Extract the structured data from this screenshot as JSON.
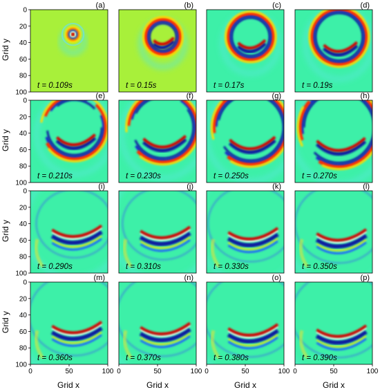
{
  "chart_data": {
    "type": "heatmap",
    "layout": "4x4 grid of snapshots",
    "xlabel": "Grid x",
    "ylabel": "Grid y",
    "x_ticks": [
      "0",
      "50",
      "100"
    ],
    "y_ticks": [
      "0",
      "20",
      "40",
      "60",
      "80",
      "100"
    ],
    "xlim": [
      0,
      100
    ],
    "ylim": [
      100,
      0
    ],
    "colormap": "jet",
    "colors": {
      "background": "#3df0a8",
      "early_background": "#a8f03a",
      "positive": "#d40000",
      "negative": "#0a1aa0"
    },
    "panels": [
      {
        "label": "(a)",
        "time": "t = 0.109s",
        "wavefront_center": [
          55,
          30
        ],
        "radius": 8,
        "background": "early"
      },
      {
        "label": "(b)",
        "time": "t = 0.15s",
        "wavefront_center": [
          57,
          33
        ],
        "radius": 20,
        "background": "early"
      },
      {
        "label": "(c)",
        "time": "t = 0.17s",
        "wavefront_center": [
          57,
          33
        ],
        "radius": 27
      },
      {
        "label": "(d)",
        "time": "t = 0.19s",
        "wavefront_center": [
          57,
          33
        ],
        "radius": 33
      },
      {
        "label": "(e)",
        "time": "t = 0.210s",
        "wavefront_center": [
          57,
          33
        ],
        "radius": 38
      },
      {
        "label": "(f)",
        "time": "t = 0.230s",
        "wavefront_center": [
          57,
          33
        ],
        "radius": 42
      },
      {
        "label": "(g)",
        "time": "t = 0.250s",
        "wavefront_center": [
          57,
          33
        ],
        "radius": 45
      },
      {
        "label": "(h)",
        "time": "t = 0.270s",
        "wavefront_center": [
          57,
          33
        ],
        "radius": 48
      },
      {
        "label": "(i)",
        "time": "t = 0.290s",
        "wavefront_center": [
          57,
          33
        ],
        "radius": 52
      },
      {
        "label": "(j)",
        "time": "t = 0.310s",
        "wavefront_center": [
          57,
          33
        ],
        "radius": 55
      },
      {
        "label": "(k)",
        "time": "t = 0.330s",
        "wavefront_center": [
          57,
          33
        ],
        "radius": 58
      },
      {
        "label": "(l)",
        "time": "t = 0.350s",
        "wavefront_center": [
          57,
          33
        ],
        "radius": 60
      },
      {
        "label": "(m)",
        "time": "t = 0.360s",
        "wavefront_center": [
          57,
          33
        ],
        "radius": 62
      },
      {
        "label": "(n)",
        "time": "t = 0.370s",
        "wavefront_center": [
          57,
          33
        ],
        "radius": 63
      },
      {
        "label": "(o)",
        "time": "t = 0.380s",
        "wavefront_center": [
          57,
          33
        ],
        "radius": 64
      },
      {
        "label": "(p)",
        "time": "t = 0.390s",
        "wavefront_center": [
          57,
          33
        ],
        "radius": 65
      }
    ]
  }
}
